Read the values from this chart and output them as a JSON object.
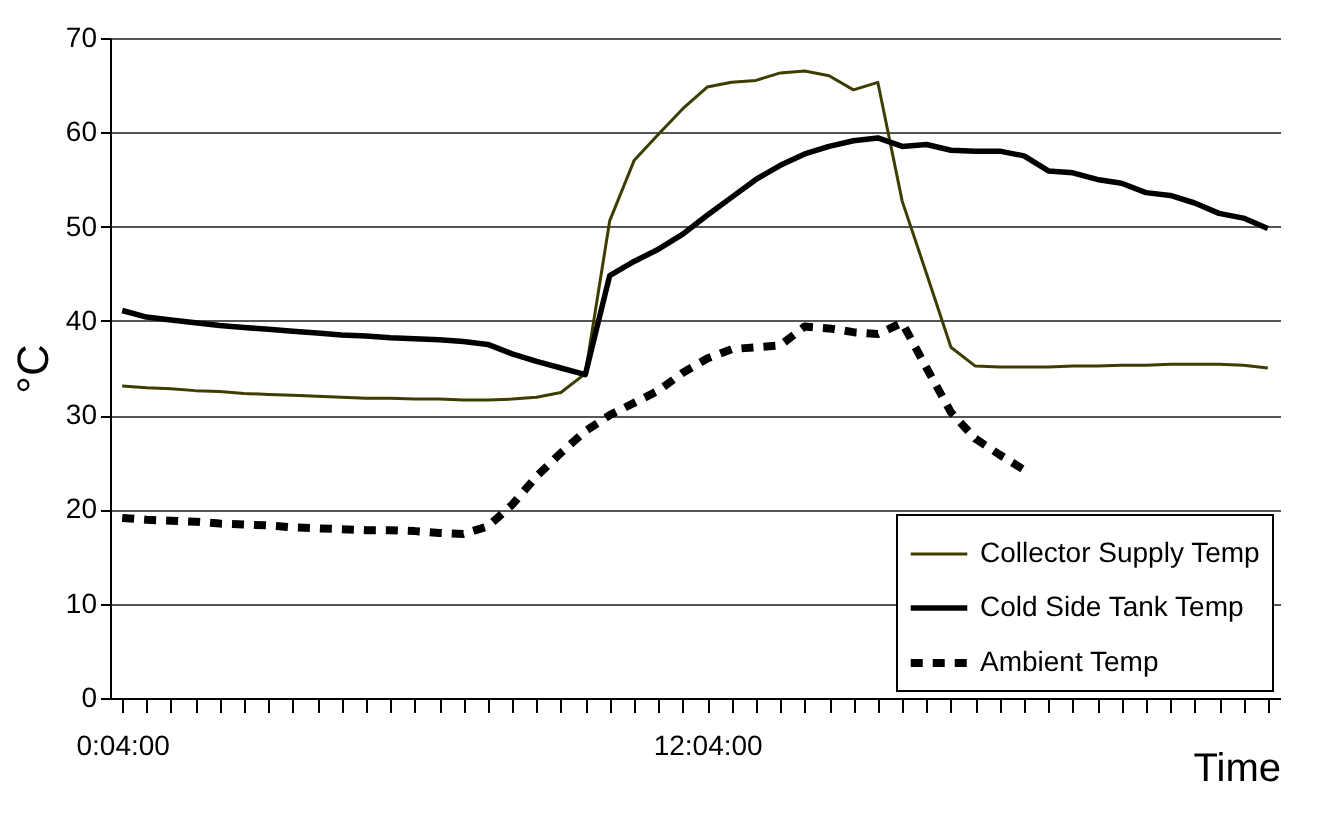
{
  "chart_data": {
    "type": "line",
    "xlabel": "Time",
    "ylabel": "°C",
    "categories": [
      "0:04:00",
      null,
      null,
      null,
      null,
      null,
      null,
      null,
      null,
      null,
      null,
      null,
      null,
      null,
      null,
      null,
      null,
      null,
      null,
      null,
      null,
      null,
      null,
      null,
      "12:04:00",
      null,
      null,
      null,
      null,
      null,
      null,
      null,
      null,
      null,
      null,
      null,
      null,
      null,
      null,
      null,
      null,
      null,
      null,
      null,
      null,
      null,
      null,
      null
    ],
    "series": [
      {
        "name": "Collector Supply Temp",
        "color": "#3d3d00",
        "line_style": "solid",
        "values": [
          33.1,
          32.9,
          32.8,
          32.6,
          32.5,
          32.3,
          32.2,
          32.1,
          32.0,
          31.9,
          31.8,
          31.8,
          31.7,
          31.7,
          31.6,
          31.6,
          31.7,
          31.9,
          32.4,
          34.4,
          50.6,
          57.0,
          59.8,
          62.5,
          64.8,
          65.3,
          65.5,
          66.3,
          66.5,
          66.0,
          64.5,
          65.3,
          52.7,
          45.0,
          37.2,
          35.2,
          35.1,
          35.1,
          35.1,
          35.2,
          35.2,
          35.3,
          35.3,
          35.4,
          35.4,
          35.4,
          35.3,
          35.0
        ]
      },
      {
        "name": "Cold Side Tank Temp",
        "color": "#000000",
        "line_style": "solid",
        "values": [
          41.1,
          40.4,
          40.1,
          39.8,
          39.5,
          39.3,
          39.1,
          38.9,
          38.7,
          38.5,
          38.4,
          38.2,
          38.1,
          38.0,
          37.8,
          37.5,
          36.5,
          35.7,
          35.0,
          34.3,
          44.8,
          46.3,
          47.6,
          49.2,
          51.2,
          53.1,
          55.0,
          56.5,
          57.7,
          58.5,
          59.1,
          59.4,
          58.5,
          58.7,
          58.1,
          58.0,
          58.0,
          57.5,
          55.9,
          55.7,
          55.0,
          54.6,
          53.6,
          53.3,
          52.5,
          51.4,
          50.9,
          49.8
        ]
      },
      {
        "name": "Ambient Temp",
        "color": "#000000",
        "line_style": "dashed",
        "values": [
          19.1,
          18.9,
          18.8,
          18.7,
          18.5,
          18.4,
          18.3,
          18.1,
          18.0,
          17.9,
          17.8,
          17.8,
          17.7,
          17.5,
          17.4,
          18.2,
          20.5,
          23.5,
          26.0,
          28.3,
          30.0,
          31.3,
          32.6,
          34.5,
          36.0,
          37.0,
          37.2,
          37.4,
          39.4,
          39.2,
          38.8,
          38.6,
          39.8,
          35.0,
          30.3,
          27.5,
          25.8,
          24.2,
          null,
          null,
          null,
          null,
          null,
          null,
          null,
          null,
          null,
          null
        ]
      }
    ],
    "ylim": [
      0,
      70
    ],
    "yticks": [
      0,
      10,
      20,
      30,
      40,
      50,
      60,
      70
    ],
    "grid": "y",
    "legend": "bottom right",
    "marker": "none"
  }
}
